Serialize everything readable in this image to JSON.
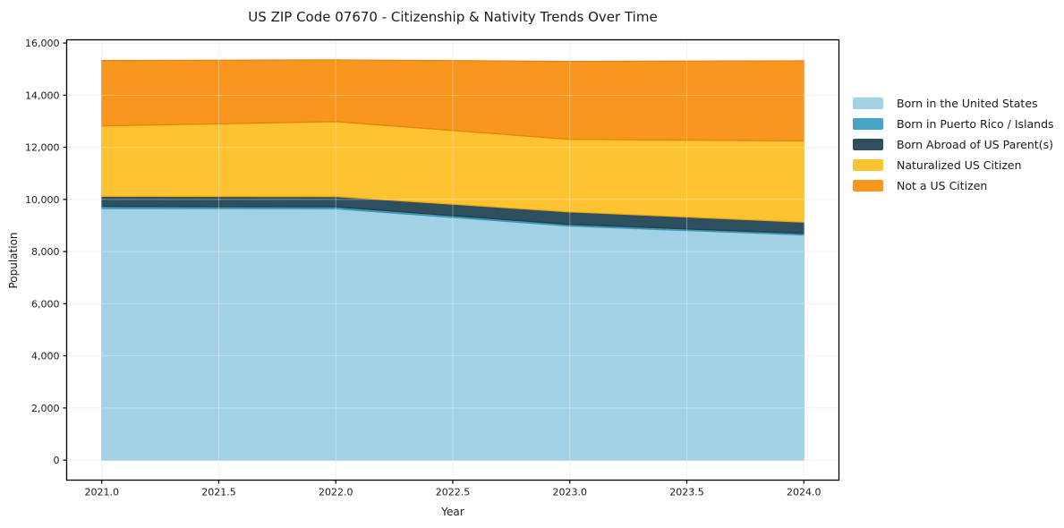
{
  "title": "US ZIP Code 07670 - Citizenship & Nativity Trends Over Time",
  "chart_data": {
    "type": "area",
    "stacked": true,
    "title": "US ZIP Code 07670 - Citizenship & Nativity Trends Over Time",
    "xlabel": "Year",
    "ylabel": "Population",
    "x": [
      2021,
      2022,
      2023,
      2024
    ],
    "series": [
      {
        "name": "Born in the United States",
        "color": "#a3d2e6",
        "edge": "#8cc1da",
        "values": [
          9650,
          9640,
          8975,
          8635
        ]
      },
      {
        "name": "Born in Puerto Rico / Islands",
        "color": "#46a4c4",
        "edge": "#3b93b3",
        "values": [
          80,
          75,
          65,
          60
        ]
      },
      {
        "name": "Born Abroad of US Parent(s)",
        "color": "#2d4f5e",
        "edge": "#223d49",
        "values": [
          390,
          395,
          480,
          435
        ]
      },
      {
        "name": "Naturalized US Citizen",
        "color": "#fdc330",
        "edge": "#f0a816",
        "values": [
          2700,
          2875,
          2785,
          3115
        ]
      },
      {
        "name": "Not a US Citizen",
        "color": "#f8961e",
        "edge": "#e67f12",
        "values": [
          2510,
          2370,
          2990,
          3075
        ]
      }
    ],
    "totals": [
      15330,
      15355,
      15295,
      15320
    ],
    "x_ticks": [
      2021.0,
      2021.5,
      2022.0,
      2022.5,
      2023.0,
      2023.5,
      2024.0
    ],
    "y_ticks": [
      0,
      2000,
      4000,
      6000,
      8000,
      10000,
      12000,
      14000,
      16000
    ],
    "xlim": [
      2020.85,
      2024.15
    ],
    "ylim": [
      -768,
      16123
    ],
    "grid": true,
    "legend_position": "right of plot, frameless",
    "axis_color": "#000000",
    "grid_color": "#ebebeb",
    "background_color": "#ffffff"
  }
}
